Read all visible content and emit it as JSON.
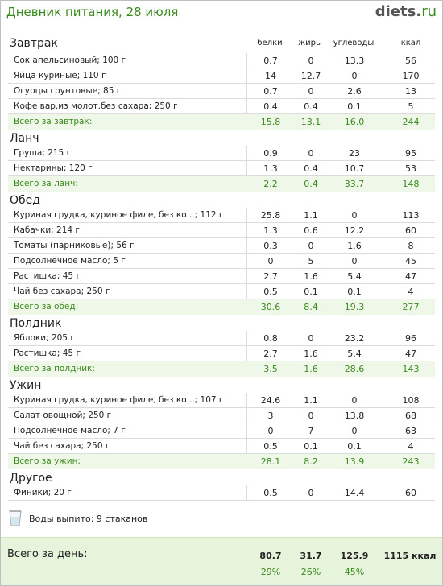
{
  "header": {
    "title": "Дневник питания, 28 июля",
    "logo_main": "diets",
    "logo_dot": ".",
    "logo_tld": "ru"
  },
  "columns": {
    "protein": "белки",
    "fat": "жиры",
    "carbs": "углеводы",
    "kcal": "ккал"
  },
  "sections": [
    {
      "title": "Завтрак",
      "items": [
        {
          "name": "Сок апельсиновый; 100 г",
          "protein": "0.7",
          "fat": "0",
          "carbs": "13.3",
          "kcal": "56"
        },
        {
          "name": "Яйца куриные; 110 г",
          "protein": "14",
          "fat": "12.7",
          "carbs": "0",
          "kcal": "170"
        },
        {
          "name": "Огурцы грунтовые; 85 г",
          "protein": "0.7",
          "fat": "0",
          "carbs": "2.6",
          "kcal": "13"
        },
        {
          "name": "Кофе вар.из молот.без сахара; 250 г",
          "protein": "0.4",
          "fat": "0.4",
          "carbs": "0.1",
          "kcal": "5"
        }
      ],
      "total": {
        "name": "Всего за завтрак:",
        "protein": "15.8",
        "fat": "13.1",
        "carbs": "16.0",
        "kcal": "244"
      }
    },
    {
      "title": "Ланч",
      "items": [
        {
          "name": "Груша; 215 г",
          "protein": "0.9",
          "fat": "0",
          "carbs": "23",
          "kcal": "95"
        },
        {
          "name": "Нектарины; 120 г",
          "protein": "1.3",
          "fat": "0.4",
          "carbs": "10.7",
          "kcal": "53"
        }
      ],
      "total": {
        "name": "Всего за ланч:",
        "protein": "2.2",
        "fat": "0.4",
        "carbs": "33.7",
        "kcal": "148"
      }
    },
    {
      "title": "Обед",
      "items": [
        {
          "name": "Куриная грудка, куриное филе, без ко...; 112 г",
          "protein": "25.8",
          "fat": "1.1",
          "carbs": "0",
          "kcal": "113"
        },
        {
          "name": "Кабачки; 214 г",
          "protein": "1.3",
          "fat": "0.6",
          "carbs": "12.2",
          "kcal": "60"
        },
        {
          "name": "Томаты (парниковые); 56 г",
          "protein": "0.3",
          "fat": "0",
          "carbs": "1.6",
          "kcal": "8"
        },
        {
          "name": "Подсолнечное масло; 5 г",
          "protein": "0",
          "fat": "5",
          "carbs": "0",
          "kcal": "45"
        },
        {
          "name": "Растишка; 45 г",
          "protein": "2.7",
          "fat": "1.6",
          "carbs": "5.4",
          "kcal": "47"
        },
        {
          "name": "Чай без сахара; 250 г",
          "protein": "0.5",
          "fat": "0.1",
          "carbs": "0.1",
          "kcal": "4"
        }
      ],
      "total": {
        "name": "Всего за обед:",
        "protein": "30.6",
        "fat": "8.4",
        "carbs": "19.3",
        "kcal": "277"
      }
    },
    {
      "title": "Полдник",
      "items": [
        {
          "name": "Яблоки; 205 г",
          "protein": "0.8",
          "fat": "0",
          "carbs": "23.2",
          "kcal": "96"
        },
        {
          "name": "Растишка; 45 г",
          "protein": "2.7",
          "fat": "1.6",
          "carbs": "5.4",
          "kcal": "47"
        }
      ],
      "total": {
        "name": "Всего за полдник:",
        "protein": "3.5",
        "fat": "1.6",
        "carbs": "28.6",
        "kcal": "143"
      }
    },
    {
      "title": "Ужин",
      "items": [
        {
          "name": "Куриная грудка, куриное филе, без ко...; 107 г",
          "protein": "24.6",
          "fat": "1.1",
          "carbs": "0",
          "kcal": "108"
        },
        {
          "name": "Салат овощной; 250 г",
          "protein": "3",
          "fat": "0",
          "carbs": "13.8",
          "kcal": "68"
        },
        {
          "name": "Подсолнечное масло; 7 г",
          "protein": "0",
          "fat": "7",
          "carbs": "0",
          "kcal": "63"
        },
        {
          "name": "Чай без сахара; 250 г",
          "protein": "0.5",
          "fat": "0.1",
          "carbs": "0.1",
          "kcal": "4"
        }
      ],
      "total": {
        "name": "Всего за ужин:",
        "protein": "28.1",
        "fat": "8.2",
        "carbs": "13.9",
        "kcal": "243"
      }
    },
    {
      "title": "Другое",
      "items": [
        {
          "name": "Финики; 20 г",
          "protein": "0.5",
          "fat": "0",
          "carbs": "14.4",
          "kcal": "60"
        }
      ],
      "total": null
    }
  ],
  "water": {
    "text": "Воды выпито: 9 стаканов",
    "icon": "glass-icon"
  },
  "day_total": {
    "label": "Всего за день:",
    "protein": "80.7",
    "fat": "31.7",
    "carbs": "125.9",
    "kcal": "1115 ккал",
    "protein_pct": "29%",
    "fat_pct": "26%",
    "carbs_pct": "45%"
  },
  "colors": {
    "accent": "#3b8a1e",
    "total_bg": "#eef7e8",
    "day_total_bg": "#e7f4dc"
  }
}
